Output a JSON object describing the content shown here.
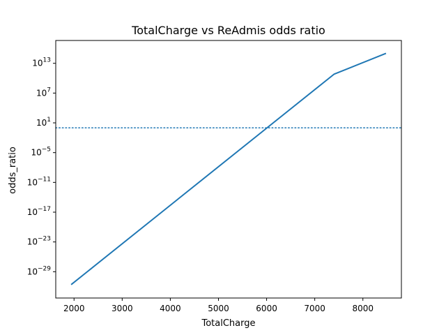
{
  "chart_data": {
    "type": "line",
    "title": "TotalCharge vs ReAdmis odds ratio",
    "xlabel": "TotalCharge",
    "ylabel": "odds_ratio",
    "x_scale": "linear",
    "y_scale": "log",
    "xlim": [
      1620,
      8800
    ],
    "ylim_log10": [
      -34.3,
      17.6
    ],
    "x_ticks": [
      2000,
      3000,
      4000,
      5000,
      6000,
      7000,
      8000
    ],
    "y_ticks": [
      {
        "exp": 13,
        "base": "10",
        "sup": "13"
      },
      {
        "exp": 7,
        "base": "10",
        "sup": "7"
      },
      {
        "exp": 1,
        "base": "10",
        "sup": "1"
      },
      {
        "exp": -5,
        "base": "10",
        "sup": "−5"
      },
      {
        "exp": -11,
        "base": "10",
        "sup": "−11"
      },
      {
        "exp": -17,
        "base": "10",
        "sup": "−17"
      },
      {
        "exp": -23,
        "base": "10",
        "sup": "−23"
      },
      {
        "exp": -29,
        "base": "10",
        "sup": "−29"
      }
    ],
    "series": [
      {
        "color": "#1f77b4",
        "x": [
          1940,
          7400,
          8480
        ],
        "y_log10": [
          -31.6,
          10.8,
          15.0
        ]
      }
    ],
    "reference_line": {
      "y": 1,
      "style": "dotted",
      "color": "#1f77b4"
    },
    "grid": false,
    "legend": "none"
  }
}
